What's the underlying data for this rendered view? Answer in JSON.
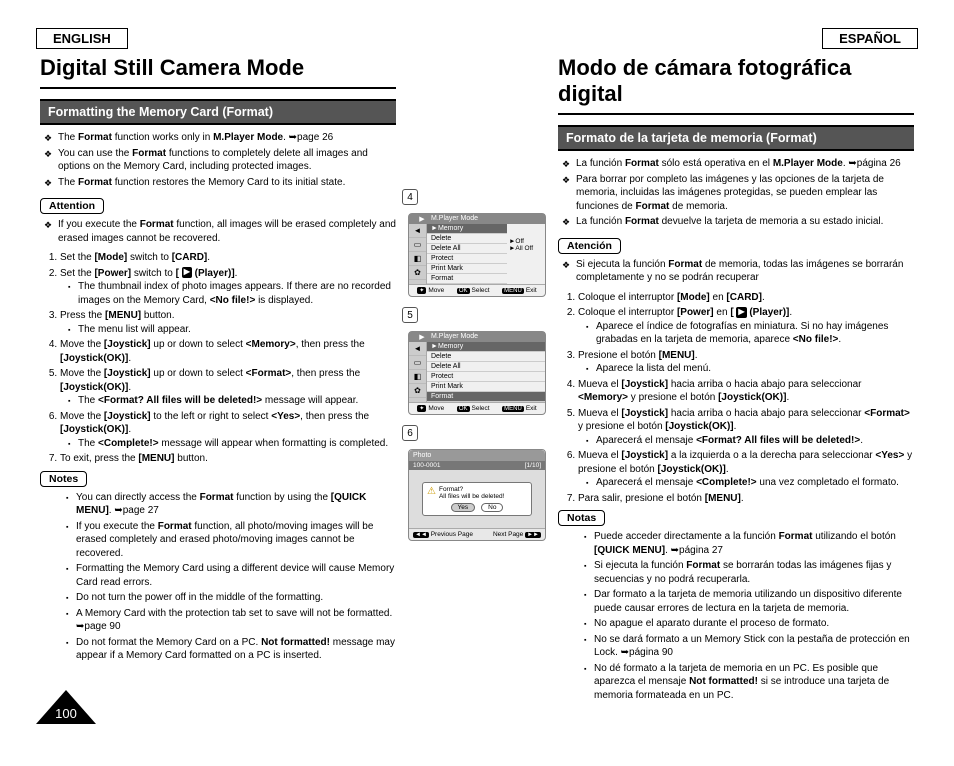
{
  "lang": {
    "en": "ENGLISH",
    "es": "ESPAÑOL"
  },
  "en": {
    "title": "Digital Still Camera Mode",
    "section": "Formatting the Memory Card (Format)",
    "attention": "Attention",
    "notes": "Notes",
    "b1": "The <b>Format</b> function works only in <b>M.Player Mode</b>. ➥page 26",
    "b2": "You can use the <b>Format</b> functions to completely delete all images and options on the Memory Card, including protected images.",
    "b3": "The <b>Format</b> function restores the Memory Card to its initial state.",
    "att": "If you execute the <b>Format</b> function, all images will be erased completely and erased images cannot be recovered.",
    "s1": "Set the <b>[Mode]</b> switch to <b>[CARD]</b>.",
    "s2": "Set the <b>[Power]</b> switch to <b>[ <span class='pgicon'>▶</span> (Player)]</b>.",
    "s2a": "The thumbnail index of photo images appears. If there are no recorded images on the Memory Card, <b>&lt;No file!&gt;</b> is displayed.",
    "s3": "Press the <b>[MENU]</b> button.",
    "s3a": "The menu list will appear.",
    "s4": "Move the <b>[Joystick]</b> up or down to select <b>&lt;Memory&gt;</b>, then press the <b>[Joystick(OK)]</b>.",
    "s5": "Move the <b>[Joystick]</b> up or down to select <b>&lt;Format&gt;</b>, then press the <b>[Joystick(OK)]</b>.",
    "s5a": "The <b>&lt;Format? All files will be deleted!&gt;</b> message will appear.",
    "s6": "Move the <b>[Joystick]</b> to the left or right to select <b>&lt;Yes&gt;</b>, then press the <b>[Joystick(OK)]</b>.",
    "s6a": "The <b>&lt;Complete!&gt;</b> message will appear when formatting is completed.",
    "s7": "To exit, press the <b>[MENU]</b> button.",
    "n1": "You can directly access the <b>Format</b> function by using the <b>[QUICK MENU]</b>. ➥page 27",
    "n2": "If you execute the <b>Format</b> function, all photo/moving images will be erased completely and erased photo/moving images cannot be recovered.",
    "n3": "Formatting the Memory Card using a different device will cause Memory Card read errors.",
    "n4": "Do not turn the power off in the middle of the formatting.",
    "n5": "A Memory Card with the protection tab set to save will not be formatted. ➥page 90",
    "n6": "Do not format the Memory Card on a PC. <b>Not formatted!</b> message may appear if a Memory Card formatted on a PC is inserted."
  },
  "es": {
    "title": "Modo de cámara fotográfica digital",
    "section": "Formato de la tarjeta de memoria (Format)",
    "attention": "Atención",
    "notes": "Notas",
    "b1": "La función <b>Format</b> sólo está operativa en el <b>M.Player Mode</b>. ➥página 26",
    "b2": "Para borrar por completo las imágenes y las opciones de la tarjeta de memoria, incluidas las imágenes protegidas, se pueden emplear las funciones de <b>Format</b> de memoria.",
    "b3": "La función <b>Format</b> devuelve la tarjeta de memoria a su estado inicial.",
    "att": "Si ejecuta la función <b>Format</b> de memoria, todas las imágenes se borrarán completamente y no se podrán recuperar",
    "s1": "Coloque el interruptor <b>[Mode]</b> en <b>[CARD]</b>.",
    "s2": "Coloque el interruptor <b>[Power]</b> en <b>[ <span class='pgicon'>▶</span> (Player)]</b>.",
    "s2a": "Aparece el índice de fotografías en miniatura. Si no hay imágenes grabadas en la tarjeta de memoria, aparece <b>&lt;No file!&gt;</b>.",
    "s3": "Presione el botón <b>[MENU]</b>.",
    "s3a": "Aparece la lista del menú.",
    "s4": "Mueva el <b>[Joystick]</b> hacia arriba o hacia abajo para seleccionar <b>&lt;Memory&gt;</b> y presione el botón <b>[Joystick(OK)]</b>.",
    "s5": "Mueva el <b>[Joystick]</b> hacia arriba o hacia abajo para seleccionar <b>&lt;Format&gt;</b> y presione el botón <b>[Joystick(OK)]</b>.",
    "s5a": "Aparecerá el mensaje <b>&lt;Format? All files will be deleted!&gt;</b>.",
    "s6": "Mueva el <b>[Joystick]</b> a la izquierda o a la derecha para seleccionar <b>&lt;Yes&gt;</b> y presione el botón <b>[Joystick(OK)]</b>.",
    "s6a": "Aparecerá el mensaje <b>&lt;Complete!&gt;</b> una vez completado el formato.",
    "s7": "Para salir, presione el botón <b>[MENU]</b>.",
    "n1": "Puede acceder directamente a la función <b>Format</b> utilizando el botón <b>[QUICK MENU]</b>. ➥página 27",
    "n2": "Si ejecuta la función <b>Format</b> se borrarán todas las imágenes fijas y secuencias y no podrá recuperarla.",
    "n3": "Dar formato a la tarjeta de memoria utilizando un dispositivo diferente puede causar errores de lectura en la tarjeta de memoria.",
    "n4": "No apague el aparato durante el proceso de formato.",
    "n5": "No se dará formato a un Memory Stick con la pestaña de protección en Lock. ➥página 90",
    "n6": "No dé formato a la tarjeta de memoria en un PC. Es posible que aparezca el mensaje <b>Not formatted!</b> si se introduce una tarjeta de memoria formateada en un PC."
  },
  "menu": {
    "mode": "M.Player Mode",
    "memory": "Memory",
    "delete": "Delete",
    "deleteAll": "Delete All",
    "protect": "Protect",
    "printMark": "Print Mark",
    "format": "Format",
    "off": "►Off",
    "allOff": "►All Off",
    "move": "Move",
    "select": "Select",
    "exit": "Exit",
    "ok": "OK",
    "menub": "MENU"
  },
  "dialog": {
    "photo": "Photo",
    "counter": "100-0001",
    "pages": "[1/10]",
    "q": "Format?",
    "msg": "All files will be deleted!",
    "yes": "Yes",
    "no": "No",
    "prev": "Previous Page",
    "next": "Next Page"
  },
  "pageNum": "100",
  "colors": {
    "bar_bg": "#555555",
    "bar_text": "#ffffff",
    "border": "#000000",
    "screen_bg": "#f0f0f0",
    "screen_hl": "#666666",
    "screen_hdr": "#888888",
    "body_text": "#000000"
  }
}
